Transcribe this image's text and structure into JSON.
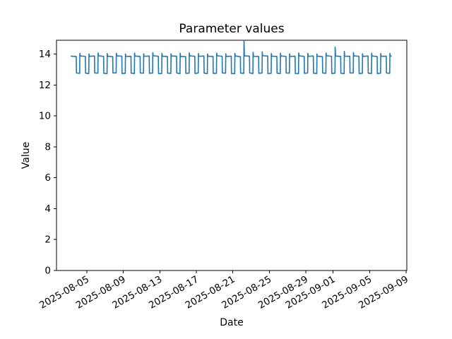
{
  "chart_data": {
    "type": "line",
    "title": "Parameter values",
    "xlabel": "Date",
    "ylabel": "Value",
    "line_color": "#1f77b4",
    "axis_color": "#000000",
    "background_color": "#ffffff",
    "grid": false,
    "legend": "none",
    "x_tick_rotation_deg": 30,
    "ylim": [
      0,
      14.9
    ],
    "xlim": [
      "2025-08-01T16:00",
      "2025-09-09T02:00"
    ],
    "y_ticks": [
      0,
      2,
      4,
      6,
      8,
      10,
      12,
      14
    ],
    "x_ticks": [
      "2025-08-05",
      "2025-08-09",
      "2025-08-13",
      "2025-08-17",
      "2025-08-21",
      "2025-08-25",
      "2025-08-29",
      "2025-09-01",
      "2025-09-05",
      "2025-09-09"
    ],
    "series_name": "Parameter values",
    "points": [
      [
        "2025-08-03T06:30",
        13.87
      ],
      [
        "2025-08-03T20:00",
        13.85
      ],
      [
        "2025-08-03T20:30",
        12.78
      ],
      [
        "2025-08-04T05:00",
        12.76
      ],
      [
        "2025-08-04T05:30",
        14.05
      ],
      [
        "2025-08-04T06:30",
        13.88
      ],
      [
        "2025-08-04T20:00",
        13.86
      ],
      [
        "2025-08-04T20:30",
        12.77
      ],
      [
        "2025-08-05T05:00",
        12.75
      ],
      [
        "2025-08-05T05:30",
        14.02
      ],
      [
        "2025-08-05T06:30",
        13.86
      ],
      [
        "2025-08-05T20:00",
        13.88
      ],
      [
        "2025-08-05T20:30",
        12.78
      ],
      [
        "2025-08-06T05:00",
        12.77
      ],
      [
        "2025-08-06T05:30",
        14.08
      ],
      [
        "2025-08-06T06:30",
        13.9
      ],
      [
        "2025-08-06T20:00",
        13.85
      ],
      [
        "2025-08-06T20:30",
        12.76
      ],
      [
        "2025-08-07T05:00",
        12.74
      ],
      [
        "2025-08-07T05:30",
        14.04
      ],
      [
        "2025-08-07T06:30",
        13.87
      ],
      [
        "2025-08-07T20:00",
        13.84
      ],
      [
        "2025-08-07T20:30",
        12.79
      ],
      [
        "2025-08-08T05:00",
        12.78
      ],
      [
        "2025-08-08T05:30",
        14.06
      ],
      [
        "2025-08-08T06:30",
        13.89
      ],
      [
        "2025-08-08T20:00",
        13.87
      ],
      [
        "2025-08-08T20:30",
        12.75
      ],
      [
        "2025-08-09T05:00",
        12.76
      ],
      [
        "2025-08-09T05:30",
        14.01
      ],
      [
        "2025-08-09T06:30",
        13.85
      ],
      [
        "2025-08-09T20:00",
        13.86
      ],
      [
        "2025-08-09T20:30",
        12.77
      ],
      [
        "2025-08-10T05:00",
        12.75
      ],
      [
        "2025-08-10T05:30",
        14.07
      ],
      [
        "2025-08-10T06:30",
        13.88
      ],
      [
        "2025-08-10T20:00",
        13.85
      ],
      [
        "2025-08-10T20:30",
        12.78
      ],
      [
        "2025-08-11T05:00",
        12.77
      ],
      [
        "2025-08-11T05:30",
        14.03
      ],
      [
        "2025-08-11T06:30",
        13.86
      ],
      [
        "2025-08-11T20:00",
        13.88
      ],
      [
        "2025-08-11T20:30",
        12.76
      ],
      [
        "2025-08-12T05:00",
        12.78
      ],
      [
        "2025-08-12T05:30",
        14.09
      ],
      [
        "2025-08-12T06:30",
        13.9
      ],
      [
        "2025-08-12T20:00",
        13.86
      ],
      [
        "2025-08-12T20:30",
        12.74
      ],
      [
        "2025-08-13T05:00",
        12.75
      ],
      [
        "2025-08-13T05:30",
        14.05
      ],
      [
        "2025-08-13T06:30",
        13.87
      ],
      [
        "2025-08-13T20:00",
        13.85
      ],
      [
        "2025-08-13T20:30",
        12.77
      ],
      [
        "2025-08-14T05:00",
        12.76
      ],
      [
        "2025-08-14T05:30",
        14.02
      ],
      [
        "2025-08-14T06:30",
        13.88
      ],
      [
        "2025-08-14T20:00",
        13.87
      ],
      [
        "2025-08-14T20:30",
        12.78
      ],
      [
        "2025-08-15T05:00",
        12.74
      ],
      [
        "2025-08-15T05:30",
        14.06
      ],
      [
        "2025-08-15T06:30",
        13.85
      ],
      [
        "2025-08-15T20:00",
        13.84
      ],
      [
        "2025-08-15T20:30",
        12.76
      ],
      [
        "2025-08-16T05:00",
        12.77
      ],
      [
        "2025-08-16T05:30",
        14.08
      ],
      [
        "2025-08-16T06:30",
        13.89
      ],
      [
        "2025-08-16T20:00",
        13.86
      ],
      [
        "2025-08-16T20:30",
        12.75
      ],
      [
        "2025-08-17T05:00",
        12.78
      ],
      [
        "2025-08-17T05:30",
        14.04
      ],
      [
        "2025-08-17T06:30",
        13.86
      ],
      [
        "2025-08-17T20:00",
        13.88
      ],
      [
        "2025-08-17T20:30",
        12.77
      ],
      [
        "2025-08-18T05:00",
        12.75
      ],
      [
        "2025-08-18T05:30",
        14.01
      ],
      [
        "2025-08-18T06:30",
        13.87
      ],
      [
        "2025-08-18T20:00",
        13.85
      ],
      [
        "2025-08-18T20:30",
        12.76
      ],
      [
        "2025-08-19T05:00",
        12.76
      ],
      [
        "2025-08-19T05:30",
        14.07
      ],
      [
        "2025-08-19T06:30",
        13.9
      ],
      [
        "2025-08-19T20:00",
        13.86
      ],
      [
        "2025-08-19T20:30",
        12.78
      ],
      [
        "2025-08-20T05:00",
        12.77
      ],
      [
        "2025-08-20T05:30",
        14.03
      ],
      [
        "2025-08-20T06:30",
        13.85
      ],
      [
        "2025-08-20T20:00",
        13.87
      ],
      [
        "2025-08-20T20:30",
        12.75
      ],
      [
        "2025-08-21T05:00",
        12.74
      ],
      [
        "2025-08-21T05:30",
        14.05
      ],
      [
        "2025-08-21T06:30",
        13.88
      ],
      [
        "2025-08-21T20:00",
        13.84
      ],
      [
        "2025-08-21T20:30",
        12.77
      ],
      [
        "2025-08-22T05:00",
        12.76
      ],
      [
        "2025-08-22T05:30",
        14.88
      ],
      [
        "2025-08-22T06:30",
        13.89
      ],
      [
        "2025-08-22T20:00",
        13.87
      ],
      [
        "2025-08-22T20:30",
        12.78
      ],
      [
        "2025-08-23T05:00",
        12.75
      ],
      [
        "2025-08-23T05:30",
        14.12
      ],
      [
        "2025-08-23T06:30",
        13.86
      ],
      [
        "2025-08-23T20:00",
        13.85
      ],
      [
        "2025-08-23T20:30",
        12.76
      ],
      [
        "2025-08-24T05:00",
        12.78
      ],
      [
        "2025-08-24T05:30",
        14.15
      ],
      [
        "2025-08-24T06:30",
        13.9
      ],
      [
        "2025-08-24T20:00",
        13.88
      ],
      [
        "2025-08-24T20:30",
        12.74
      ],
      [
        "2025-08-25T05:00",
        12.76
      ],
      [
        "2025-08-25T05:30",
        14.04
      ],
      [
        "2025-08-25T06:30",
        13.87
      ],
      [
        "2025-08-25T20:00",
        13.85
      ],
      [
        "2025-08-25T20:30",
        12.77
      ],
      [
        "2025-08-26T05:00",
        12.75
      ],
      [
        "2025-08-26T05:30",
        14.06
      ],
      [
        "2025-08-26T06:30",
        13.88
      ],
      [
        "2025-08-26T20:00",
        13.86
      ],
      [
        "2025-08-26T20:30",
        12.78
      ],
      [
        "2025-08-27T05:00",
        12.77
      ],
      [
        "2025-08-27T05:30",
        14.02
      ],
      [
        "2025-08-27T06:30",
        13.85
      ],
      [
        "2025-08-27T20:00",
        13.87
      ],
      [
        "2025-08-27T20:30",
        12.75
      ],
      [
        "2025-08-28T05:00",
        12.74
      ],
      [
        "2025-08-28T05:30",
        14.08
      ],
      [
        "2025-08-28T06:30",
        13.89
      ],
      [
        "2025-08-28T20:00",
        13.85
      ],
      [
        "2025-08-28T20:30",
        12.76
      ],
      [
        "2025-08-29T05:00",
        12.78
      ],
      [
        "2025-08-29T05:30",
        14.05
      ],
      [
        "2025-08-29T06:30",
        13.86
      ],
      [
        "2025-08-29T20:00",
        13.88
      ],
      [
        "2025-08-29T20:30",
        12.77
      ],
      [
        "2025-08-30T05:00",
        12.75
      ],
      [
        "2025-08-30T05:30",
        14.01
      ],
      [
        "2025-08-30T06:30",
        13.87
      ],
      [
        "2025-08-30T20:00",
        13.84
      ],
      [
        "2025-08-30T20:30",
        12.78
      ],
      [
        "2025-08-31T05:00",
        12.76
      ],
      [
        "2025-08-31T05:30",
        14.07
      ],
      [
        "2025-08-31T06:30",
        13.9
      ],
      [
        "2025-08-31T20:00",
        13.86
      ],
      [
        "2025-08-31T20:30",
        12.75
      ],
      [
        "2025-09-01T05:00",
        12.77
      ],
      [
        "2025-09-01T05:30",
        14.45
      ],
      [
        "2025-09-01T06:30",
        13.88
      ],
      [
        "2025-09-01T20:00",
        13.85
      ],
      [
        "2025-09-01T20:30",
        12.76
      ],
      [
        "2025-09-02T05:00",
        12.74
      ],
      [
        "2025-09-02T05:30",
        14.18
      ],
      [
        "2025-09-02T06:30",
        13.86
      ],
      [
        "2025-09-02T20:00",
        13.87
      ],
      [
        "2025-09-02T20:30",
        12.78
      ],
      [
        "2025-09-03T05:00",
        12.78
      ],
      [
        "2025-09-03T05:30",
        14.1
      ],
      [
        "2025-09-03T06:30",
        13.89
      ],
      [
        "2025-09-03T20:00",
        13.86
      ],
      [
        "2025-09-03T20:30",
        12.75
      ],
      [
        "2025-09-04T05:00",
        12.76
      ],
      [
        "2025-09-04T05:30",
        14.03
      ],
      [
        "2025-09-04T06:30",
        13.85
      ],
      [
        "2025-09-04T20:00",
        13.88
      ],
      [
        "2025-09-04T20:30",
        12.77
      ],
      [
        "2025-09-05T05:00",
        12.75
      ],
      [
        "2025-09-05T05:30",
        14.06
      ],
      [
        "2025-09-05T06:30",
        13.88
      ],
      [
        "2025-09-05T20:00",
        13.85
      ],
      [
        "2025-09-05T20:30",
        12.74
      ],
      [
        "2025-09-06T05:00",
        12.77
      ],
      [
        "2025-09-06T05:30",
        14.04
      ],
      [
        "2025-09-06T06:30",
        13.86
      ],
      [
        "2025-09-06T20:00",
        13.87
      ],
      [
        "2025-09-06T20:30",
        12.78
      ],
      [
        "2025-09-07T05:00",
        12.76
      ],
      [
        "2025-09-07T05:30",
        14.05
      ],
      [
        "2025-09-07T06:30",
        13.88
      ],
      [
        "2025-09-07T09:00",
        13.87
      ]
    ]
  }
}
